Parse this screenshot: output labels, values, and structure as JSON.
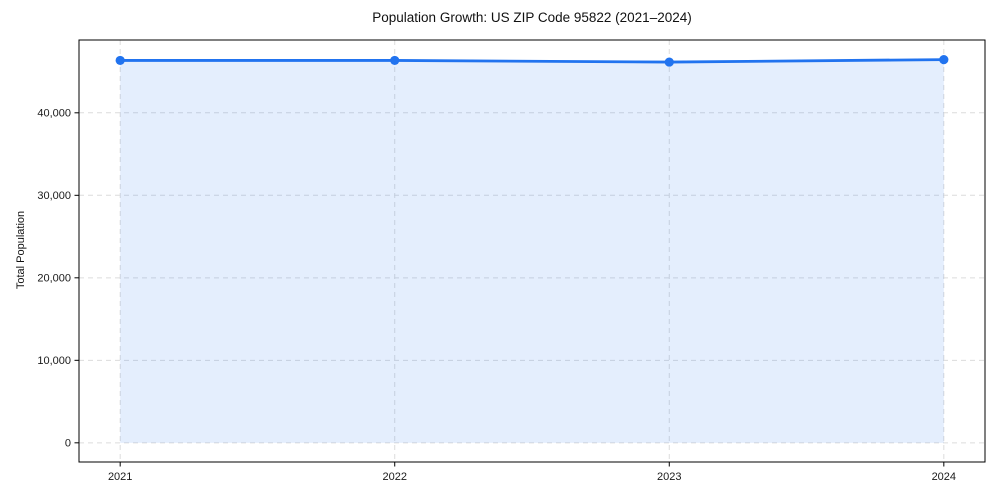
{
  "chart_data": {
    "type": "line",
    "title": "Population Growth: US ZIP Code 95822 (2021–2024)",
    "xlabel": "",
    "ylabel": "Total Population",
    "x": [
      2021,
      2022,
      2023,
      2024
    ],
    "series": [
      {
        "name": "Total Population",
        "values": [
          46350,
          46350,
          46150,
          46450
        ]
      }
    ],
    "x_tick_labels": [
      "2021",
      "2022",
      "2023",
      "2024"
    ],
    "y_ticks": [
      0,
      10000,
      20000,
      30000,
      40000
    ],
    "y_tick_labels": [
      "0",
      "10,000",
      "20,000",
      "30,000",
      "40,000"
    ],
    "xlim": [
      2020.85,
      2024.15
    ],
    "ylim": [
      -2325,
      48825
    ],
    "grid": true,
    "legend": false,
    "style": {
      "line_color": "#2173ef",
      "marker_color": "#2173ef",
      "fill_color": "#2173ef",
      "fill_opacity": 0.12,
      "grid_color": "#dcdcdc",
      "axis_color": "#000000",
      "tick_text_color": "#1a1a1a",
      "background": "#ffffff"
    }
  }
}
